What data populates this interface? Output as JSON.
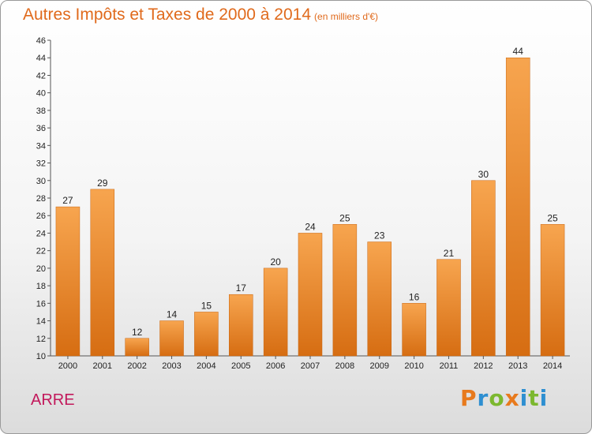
{
  "title": "Autres Impôts et Taxes de 2000 à 2014",
  "subtitle": "(en milliers d'€)",
  "location": "ARRE",
  "logo": {
    "letters": [
      "P",
      "r",
      "o",
      "x",
      "i",
      "t",
      "i"
    ],
    "colors": [
      "#e87a1d",
      "#2e8fd1",
      "#7cb82f",
      "#e87a1d",
      "#2e8fd1",
      "#7cb82f",
      "#2e8fd1"
    ]
  },
  "colors": {
    "bar_light": "#f7a54f",
    "bar_dark": "#d66d12",
    "title": "#e06a1c",
    "location": "#c2185b"
  },
  "chart_data": {
    "type": "bar",
    "title": "Autres Impôts et Taxes de 2000 à 2014",
    "subtitle": "(en milliers d'€)",
    "xlabel": "",
    "ylabel": "",
    "categories": [
      "2000",
      "2001",
      "2002",
      "2003",
      "2004",
      "2005",
      "2006",
      "2007",
      "2008",
      "2009",
      "2010",
      "2011",
      "2012",
      "2013",
      "2014"
    ],
    "values": [
      27,
      29,
      12,
      14,
      15,
      17,
      20,
      24,
      25,
      23,
      16,
      21,
      30,
      44,
      25
    ],
    "ylim": [
      10,
      46
    ],
    "yticks": [
      10,
      12,
      14,
      16,
      18,
      20,
      22,
      24,
      26,
      28,
      30,
      32,
      34,
      36,
      38,
      40,
      42,
      44,
      46
    ],
    "grid": false,
    "legend": "none"
  }
}
